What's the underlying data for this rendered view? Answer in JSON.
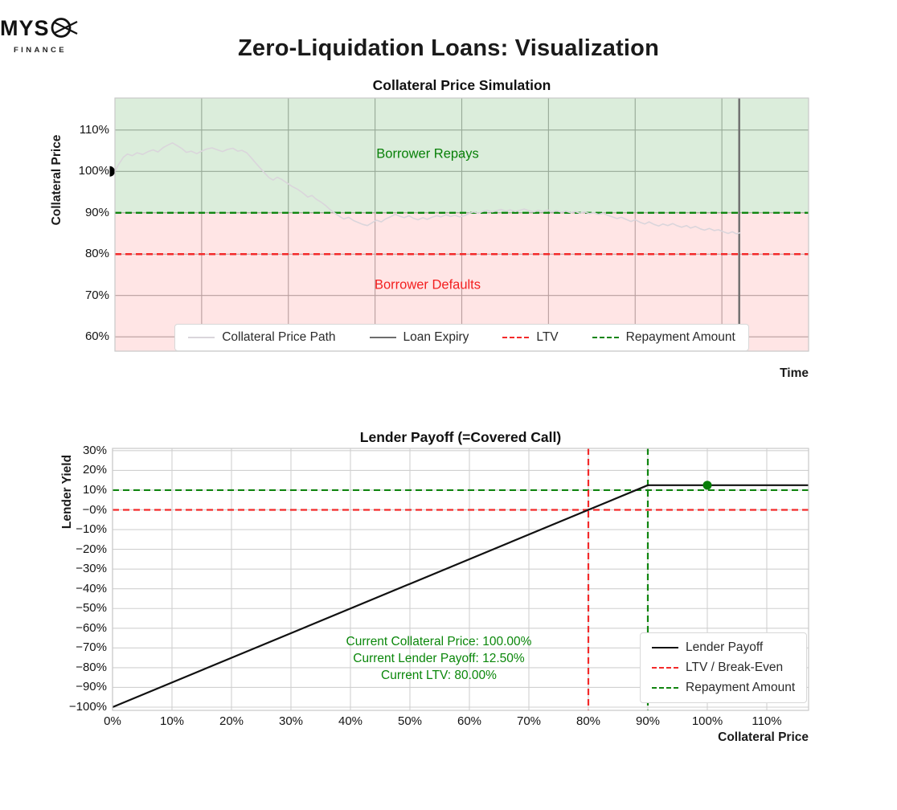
{
  "page": {
    "title": "Zero-Liquidation Loans: Visualization"
  },
  "logo": {
    "text": "MYS",
    "icon": "slashed-o-scissors-icon",
    "subtitle": "FINANCE"
  },
  "colors": {
    "green": "#108510",
    "green_text": "#088008",
    "red": "#f32a2a",
    "red_text": "#f31f1f",
    "region_green": "rgba(0,128,0,0.14)",
    "region_red": "rgba(255,0,0,0.10)",
    "price_path": "#dad5db",
    "expiry": "#6d6d6d",
    "grid_top": "#b0b0b0",
    "grid_bottom": "#d0d0d0",
    "spine": "#c9c9c9",
    "payoff": "#111111",
    "marker_dot": "#077e07",
    "start_dot": "#000000"
  },
  "chart_data": [
    {
      "id": "collateral-price-simulation",
      "type": "line",
      "title": "Collateral Price Simulation",
      "xlabel": "Time",
      "ylabel": "Collateral Price",
      "xlim": [
        0,
        1
      ],
      "ylim": [
        56.5,
        117.7
      ],
      "grid": true,
      "xgrid_divisions": 8,
      "yticks": [
        {
          "label": "110%",
          "value": 110
        },
        {
          "label": "100%",
          "value": 100
        },
        {
          "label": "90%",
          "value": 90
        },
        {
          "label": "80%",
          "value": 80
        },
        {
          "label": "70%",
          "value": 70
        },
        {
          "label": "60%",
          "value": 60
        }
      ],
      "regions": [
        {
          "name": "Borrower Repays",
          "from": 90,
          "to": 117.7,
          "fill": "region_green",
          "text_color": "green_text"
        },
        {
          "name": "Borrower Defaults",
          "from": 56.5,
          "to": 90,
          "fill": "region_red",
          "text_color": "red_text"
        }
      ],
      "hlines": [
        {
          "name": "Repayment Amount",
          "value": 90,
          "color": "green",
          "style": "dashed"
        },
        {
          "name": "LTV",
          "value": 80,
          "color": "red",
          "style": "dashed"
        }
      ],
      "vlines": [
        {
          "name": "Loan Expiry",
          "t": 0.9,
          "color": "expiry",
          "style": "solid"
        }
      ],
      "series": [
        {
          "name": "Collateral Price Path",
          "color": "price_path",
          "start_marker": "black-half-dot",
          "points": [
            [
              0,
              100
            ],
            [
              0.005,
              101.6
            ],
            [
              0.012,
              103.4
            ],
            [
              0.018,
              104.2
            ],
            [
              0.025,
              103.8
            ],
            [
              0.032,
              104.5
            ],
            [
              0.04,
              104.1
            ],
            [
              0.048,
              104.8
            ],
            [
              0.055,
              105.2
            ],
            [
              0.062,
              104.7
            ],
            [
              0.07,
              105.8
            ],
            [
              0.078,
              106.5
            ],
            [
              0.083,
              106.9
            ],
            [
              0.09,
              106.2
            ],
            [
              0.096,
              105.6
            ],
            [
              0.103,
              104.6
            ],
            [
              0.11,
              104.9
            ],
            [
              0.118,
              104.3
            ],
            [
              0.125,
              104.9
            ],
            [
              0.132,
              105.4
            ],
            [
              0.14,
              105.7
            ],
            [
              0.148,
              105.2
            ],
            [
              0.155,
              104.8
            ],
            [
              0.162,
              105.3
            ],
            [
              0.17,
              105.6
            ],
            [
              0.177,
              104.9
            ],
            [
              0.183,
              105.1
            ],
            [
              0.19,
              104.5
            ],
            [
              0.197,
              103.2
            ],
            [
              0.204,
              101.8
            ],
            [
              0.21,
              100.7
            ],
            [
              0.216,
              99.6
            ],
            [
              0.222,
              98.5
            ],
            [
              0.228,
              97.9
            ],
            [
              0.234,
              98.6
            ],
            [
              0.24,
              98.1
            ],
            [
              0.248,
              97.2
            ],
            [
              0.255,
              96.4
            ],
            [
              0.263,
              95.7
            ],
            [
              0.27,
              94.9
            ],
            [
              0.278,
              93.8
            ],
            [
              0.284,
              94.2
            ],
            [
              0.29,
              93.3
            ],
            [
              0.297,
              92.6
            ],
            [
              0.304,
              91.7
            ],
            [
              0.31,
              90.8
            ],
            [
              0.317,
              89.9
            ],
            [
              0.324,
              89.1
            ],
            [
              0.33,
              88.5
            ],
            [
              0.337,
              88.9
            ],
            [
              0.344,
              88.1
            ],
            [
              0.35,
              87.7
            ],
            [
              0.357,
              87.2
            ],
            [
              0.364,
              86.9
            ],
            [
              0.37,
              87.5
            ],
            [
              0.377,
              88.2
            ],
            [
              0.384,
              87.8
            ],
            [
              0.39,
              88.5
            ],
            [
              0.397,
              89.0
            ],
            [
              0.404,
              89.6
            ],
            [
              0.41,
              89.2
            ],
            [
              0.417,
              88.8
            ],
            [
              0.424,
              89.3
            ],
            [
              0.43,
              88.7
            ],
            [
              0.437,
              88.3
            ],
            [
              0.444,
              88.8
            ],
            [
              0.45,
              88.4
            ],
            [
              0.457,
              88.9
            ],
            [
              0.464,
              89.3
            ],
            [
              0.47,
              89.0
            ],
            [
              0.477,
              89.5
            ],
            [
              0.484,
              89.1
            ],
            [
              0.49,
              89.4
            ],
            [
              0.497,
              89.0
            ],
            [
              0.504,
              89.3
            ],
            [
              0.51,
              89.8
            ],
            [
              0.517,
              90.2
            ],
            [
              0.524,
              89.9
            ],
            [
              0.53,
              90.3
            ],
            [
              0.537,
              90.6
            ],
            [
              0.544,
              90.2
            ],
            [
              0.55,
              90.5
            ],
            [
              0.557,
              90.8
            ],
            [
              0.564,
              90.4
            ],
            [
              0.57,
              90.7
            ],
            [
              0.577,
              90.3
            ],
            [
              0.584,
              90.6
            ],
            [
              0.59,
              90.9
            ],
            [
              0.597,
              90.5
            ],
            [
              0.604,
              90.2
            ],
            [
              0.61,
              90.6
            ],
            [
              0.617,
              90.3
            ],
            [
              0.624,
              90.7
            ],
            [
              0.63,
              90.2
            ],
            [
              0.637,
              90.5
            ],
            [
              0.644,
              90.1
            ],
            [
              0.65,
              90.4
            ],
            [
              0.657,
              90.0
            ],
            [
              0.664,
              90.3
            ],
            [
              0.67,
              89.9
            ],
            [
              0.677,
              90.2
            ],
            [
              0.684,
              89.8
            ],
            [
              0.69,
              90.0
            ],
            [
              0.697,
              89.6
            ],
            [
              0.704,
              89.9
            ],
            [
              0.71,
              89.4
            ],
            [
              0.717,
              89.0
            ],
            [
              0.724,
              88.6
            ],
            [
              0.73,
              88.9
            ],
            [
              0.737,
              88.4
            ],
            [
              0.744,
              87.9
            ],
            [
              0.75,
              88.3
            ],
            [
              0.757,
              87.7
            ],
            [
              0.764,
              87.3
            ],
            [
              0.77,
              87.8
            ],
            [
              0.777,
              87.2
            ],
            [
              0.784,
              86.8
            ],
            [
              0.79,
              87.3
            ],
            [
              0.797,
              86.9
            ],
            [
              0.804,
              87.4
            ],
            [
              0.81,
              86.9
            ],
            [
              0.817,
              86.5
            ],
            [
              0.824,
              86.9
            ],
            [
              0.83,
              86.3
            ],
            [
              0.837,
              86.7
            ],
            [
              0.844,
              86.1
            ],
            [
              0.85,
              85.8
            ],
            [
              0.857,
              86.2
            ],
            [
              0.864,
              85.7
            ],
            [
              0.87,
              85.9
            ],
            [
              0.877,
              85.4
            ],
            [
              0.884,
              85.0
            ],
            [
              0.89,
              85.4
            ],
            [
              0.896,
              84.9
            ],
            [
              0.902,
              85.2
            ]
          ]
        }
      ],
      "legend": [
        {
          "label": "Collateral Price Path",
          "swatch": "line",
          "color": "price_path"
        },
        {
          "label": "Loan Expiry",
          "swatch": "line",
          "color": "expiry"
        },
        {
          "label": "LTV",
          "swatch": "dashed",
          "color": "red"
        },
        {
          "label": "Repayment Amount",
          "swatch": "dashed",
          "color": "green"
        }
      ]
    },
    {
      "id": "lender-payoff",
      "type": "line",
      "title": "Lender Payoff (=Covered Call)",
      "xlabel": "Collateral Price",
      "ylabel": "Lender Yield",
      "xlim": [
        0,
        117
      ],
      "ylim": [
        -101.6,
        31.2
      ],
      "grid": true,
      "xticks": [
        {
          "label": "0%",
          "value": 0
        },
        {
          "label": "10%",
          "value": 10
        },
        {
          "label": "20%",
          "value": 20
        },
        {
          "label": "30%",
          "value": 30
        },
        {
          "label": "40%",
          "value": 40
        },
        {
          "label": "50%",
          "value": 50
        },
        {
          "label": "60%",
          "value": 60
        },
        {
          "label": "70%",
          "value": 70
        },
        {
          "label": "80%",
          "value": 80
        },
        {
          "label": "90%",
          "value": 90
        },
        {
          "label": "100%",
          "value": 100
        },
        {
          "label": "110%",
          "value": 110
        }
      ],
      "yticks": [
        {
          "label": "30%",
          "value": 30
        },
        {
          "label": "20%",
          "value": 20
        },
        {
          "label": "10%",
          "value": 10
        },
        {
          "label": "−0%",
          "value": 0
        },
        {
          "label": "−10%",
          "value": -10
        },
        {
          "label": "−20%",
          "value": -20
        },
        {
          "label": "−30%",
          "value": -30
        },
        {
          "label": "−40%",
          "value": -40
        },
        {
          "label": "−50%",
          "value": -50
        },
        {
          "label": "−60%",
          "value": -60
        },
        {
          "label": "−70%",
          "value": -70
        },
        {
          "label": "−80%",
          "value": -80
        },
        {
          "label": "−90%",
          "value": -90
        },
        {
          "label": "−100%",
          "value": -100
        }
      ],
      "hlines": [
        {
          "name": "Repayment Amount",
          "value": 10,
          "color": "green",
          "style": "dashed"
        },
        {
          "name": "LTV / Break-Even",
          "value": 0,
          "color": "red",
          "style": "dashed"
        }
      ],
      "vlines": [
        {
          "name": "LTV / Break-Even",
          "value": 80,
          "color": "red",
          "style": "dashed"
        },
        {
          "name": "Repayment Amount",
          "value": 90,
          "color": "green",
          "style": "dashed"
        }
      ],
      "series": [
        {
          "name": "Lender Payoff",
          "color": "payoff",
          "points": [
            [
              0,
              -100
            ],
            [
              90,
              12.5
            ],
            [
              117,
              12.5
            ]
          ]
        }
      ],
      "marker": {
        "x": 100,
        "y": 12.5,
        "color": "marker_dot"
      },
      "annotation": {
        "color": "#0a870a",
        "lines": [
          "Current Collateral Price: 100.00%",
          "Current Lender Payoff: 12.50%",
          "Current LTV: 80.00%"
        ]
      },
      "legend": [
        {
          "label": "Lender Payoff",
          "swatch": "line",
          "color": "payoff"
        },
        {
          "label": "LTV / Break-Even",
          "swatch": "dashed",
          "color": "red"
        },
        {
          "label": "Repayment Amount",
          "swatch": "dashed",
          "color": "green"
        }
      ]
    }
  ]
}
